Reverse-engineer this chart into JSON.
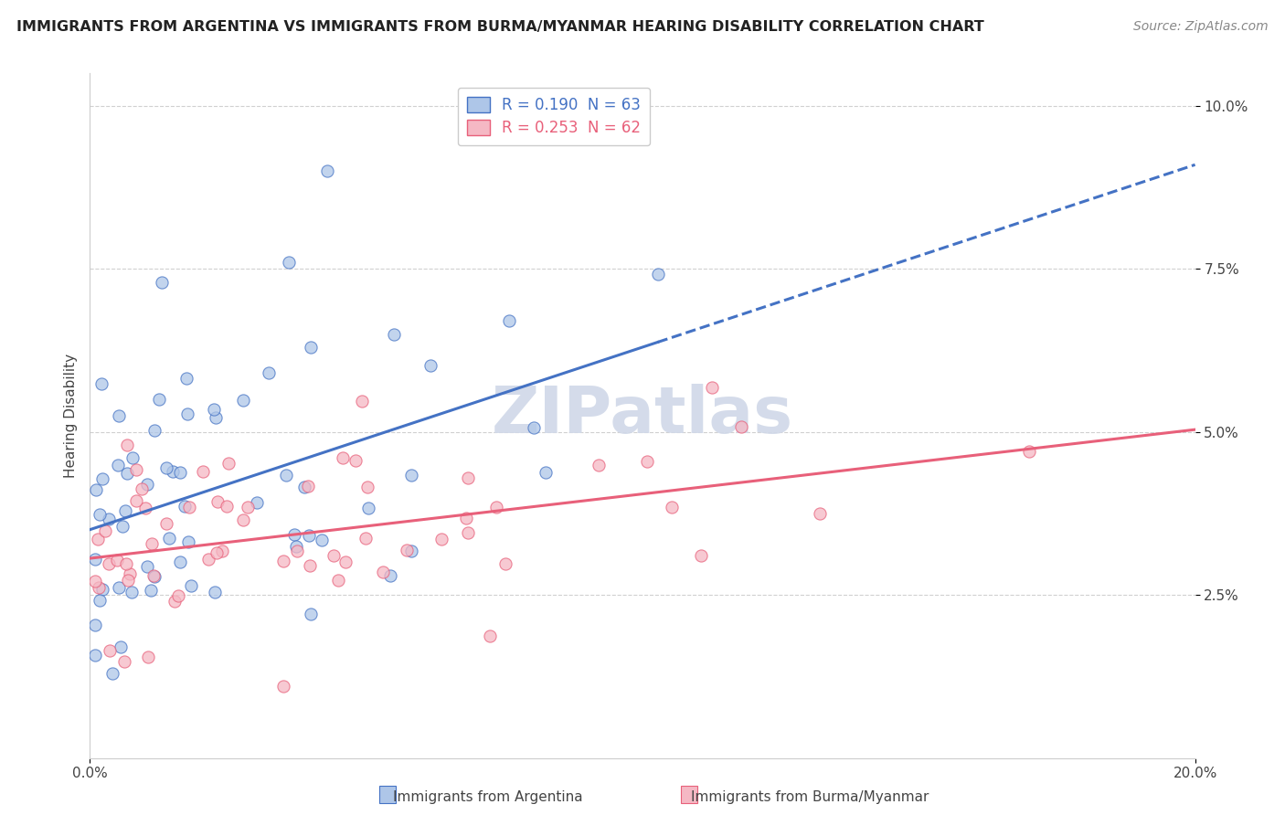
{
  "title": "IMMIGRANTS FROM ARGENTINA VS IMMIGRANTS FROM BURMA/MYANMAR HEARING DISABILITY CORRELATION CHART",
  "source": "Source: ZipAtlas.com",
  "ylabel": "Hearing Disability",
  "xlim": [
    0.0,
    0.2
  ],
  "ylim": [
    0.0,
    0.105
  ],
  "ytick_vals": [
    0.025,
    0.05,
    0.075,
    0.1
  ],
  "ytick_labels": [
    "2.5%",
    "5.0%",
    "7.5%",
    "10.0%"
  ],
  "legend_line1": "R = 0.190  N = 63",
  "legend_line2": "R = 0.253  N = 62",
  "color_argentina": "#aec6e8",
  "color_burma": "#f5b8c4",
  "color_argentina_line": "#4472c4",
  "color_burma_line": "#e8607a",
  "color_argentina_edge": "#4472c4",
  "color_burma_edge": "#e8607a",
  "background_color": "#ffffff",
  "watermark": "ZIPatlas",
  "watermark_color": "#d0d8e8",
  "grid_color": "#d0d0d0",
  "title_fontsize": 11.5,
  "source_fontsize": 10,
  "tick_fontsize": 11,
  "legend_fontsize": 12,
  "ylabel_fontsize": 11
}
